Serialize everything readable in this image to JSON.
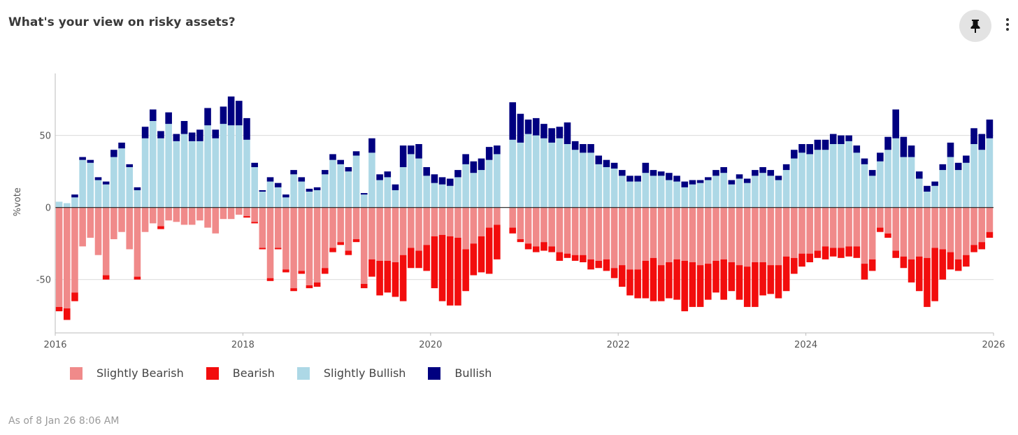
{
  "header": {
    "title": "What's your view on risky assets?",
    "pin_icon": "pin-icon",
    "more_icon": "more-vertical-icon"
  },
  "footer": {
    "as_of": "As of 8 Jan 26 8:06 AM"
  },
  "chart_data": {
    "type": "bar",
    "stacked": true,
    "ylabel": "%vote",
    "ylim": [
      -87,
      93
    ],
    "yticks": [
      -50,
      0,
      50
    ],
    "xlim": [
      "2016-01",
      "2026-01"
    ],
    "xticks": [
      "2016",
      "2018",
      "2020",
      "2022",
      "2024",
      "2026"
    ],
    "grid": "horizontal",
    "legend_position": "bottom-left",
    "legend": [
      "Slightly Bearish",
      "Bearish",
      "Slightly Bullish",
      "Bullish"
    ],
    "colors": {
      "Slightly Bearish": "#f08a8a",
      "Bearish": "#f20d0d",
      "Slightly Bullish": "#add8e6",
      "Bullish": "#000080"
    },
    "x": [
      "2016-01",
      "2016-02",
      "2016-03",
      "2016-04",
      "2016-05",
      "2016-06",
      "2016-07",
      "2016-08",
      "2016-09",
      "2016-10",
      "2016-11",
      "2016-12",
      "2017-01",
      "2017-02",
      "2017-03",
      "2017-04",
      "2017-05",
      "2017-06",
      "2017-07",
      "2017-08",
      "2017-09",
      "2017-10",
      "2017-11",
      "2017-12",
      "2018-01",
      "2018-02",
      "2018-03",
      "2018-04",
      "2018-05",
      "2018-06",
      "2018-07",
      "2018-08",
      "2018-09",
      "2018-10",
      "2018-11",
      "2018-12",
      "2019-01",
      "2019-02",
      "2019-03",
      "2019-04",
      "2019-05",
      "2019-06",
      "2019-07",
      "2019-08",
      "2019-09",
      "2019-10",
      "2019-11",
      "2019-12",
      "2020-01",
      "2020-02",
      "2020-03",
      "2020-04",
      "2020-05",
      "2020-06",
      "2020-07",
      "2020-08",
      "2020-09",
      "2020-10",
      "2020-11",
      "2020-12",
      "2021-01",
      "2021-02",
      "2021-03",
      "2021-04",
      "2021-05",
      "2021-06",
      "2021-07",
      "2021-08",
      "2021-09",
      "2021-10",
      "2021-11",
      "2021-12",
      "2022-01",
      "2022-02",
      "2022-03",
      "2022-04",
      "2022-05",
      "2022-06",
      "2022-07",
      "2022-08",
      "2022-09",
      "2022-10",
      "2022-11",
      "2022-12",
      "2023-01",
      "2023-02",
      "2023-03",
      "2023-04",
      "2023-05",
      "2023-06",
      "2023-07",
      "2023-08",
      "2023-09",
      "2023-10",
      "2023-11",
      "2023-12",
      "2024-01",
      "2024-02",
      "2024-03",
      "2024-04",
      "2024-05",
      "2024-06",
      "2024-07",
      "2024-08",
      "2024-09",
      "2024-10",
      "2024-11",
      "2024-12",
      "2025-01",
      "2025-02",
      "2025-03",
      "2025-04",
      "2025-05",
      "2025-06",
      "2025-07",
      "2025-08",
      "2025-09",
      "2025-10",
      "2025-11",
      "2025-12"
    ],
    "series": [
      {
        "name": "Slightly Bullish",
        "values": [
          4,
          3,
          7,
          33,
          31,
          19,
          16,
          35,
          41,
          28,
          12,
          48,
          60,
          48,
          58,
          46,
          51,
          46,
          46,
          57,
          48,
          58,
          57,
          57,
          47,
          28,
          11,
          18,
          14,
          7,
          23,
          18,
          11,
          12,
          23,
          33,
          30,
          25,
          36,
          9,
          38,
          19,
          21,
          12,
          28,
          37,
          34,
          22,
          17,
          16,
          15,
          21,
          30,
          24,
          26,
          33,
          37,
          0,
          47,
          45,
          51,
          50,
          48,
          45,
          48,
          44,
          40,
          38,
          38,
          30,
          28,
          27,
          22,
          18,
          18,
          24,
          22,
          22,
          19,
          18,
          14,
          16,
          17,
          19,
          22,
          24,
          16,
          20,
          17,
          22,
          24,
          22,
          19,
          26,
          34,
          38,
          37,
          40,
          40,
          44,
          44,
          46,
          38,
          30,
          22,
          32,
          40,
          48,
          35,
          35,
          20,
          11,
          15,
          26,
          35,
          26,
          31,
          44,
          40,
          48
        ]
      },
      {
        "name": "Bullish",
        "values": [
          0,
          0,
          2,
          2,
          2,
          2,
          2,
          5,
          4,
          2,
          2,
          8,
          8,
          5,
          8,
          5,
          9,
          6,
          8,
          12,
          6,
          12,
          20,
          17,
          15,
          3,
          1,
          3,
          3,
          2,
          3,
          3,
          2,
          2,
          3,
          4,
          3,
          3,
          3,
          1,
          10,
          4,
          4,
          4,
          15,
          6,
          10,
          6,
          6,
          5,
          5,
          5,
          7,
          8,
          8,
          9,
          6,
          0,
          26,
          20,
          10,
          12,
          10,
          10,
          8,
          15,
          6,
          6,
          6,
          6,
          5,
          4,
          4,
          4,
          4,
          7,
          4,
          3,
          5,
          4,
          4,
          3,
          2,
          2,
          4,
          4,
          3,
          3,
          3,
          4,
          4,
          4,
          3,
          4,
          6,
          6,
          7,
          7,
          7,
          7,
          6,
          4,
          5,
          4,
          4,
          6,
          9,
          20,
          14,
          8,
          5,
          4,
          3,
          4,
          10,
          5,
          5,
          11,
          11,
          13
        ]
      },
      {
        "name": "Slightly Bearish",
        "values": [
          -69,
          -70,
          -59,
          -27,
          -21,
          -33,
          -47,
          -22,
          -17,
          -29,
          -48,
          -17,
          -11,
          -13,
          -9,
          -10,
          -12,
          -12,
          -9,
          -14,
          -18,
          -8,
          -8,
          -5,
          -6,
          -10,
          -28,
          -49,
          -28,
          -43,
          -56,
          -44,
          -54,
          -52,
          -42,
          -28,
          -24,
          -30,
          -22,
          -53,
          -36,
          -37,
          -37,
          -38,
          -33,
          -28,
          -30,
          -26,
          -20,
          -19,
          -20,
          -21,
          -29,
          -25,
          -20,
          -14,
          -12,
          0,
          -14,
          -22,
          -25,
          -27,
          -24,
          -27,
          -31,
          -32,
          -33,
          -33,
          -36,
          -37,
          -36,
          -42,
          -40,
          -43,
          -43,
          -37,
          -35,
          -40,
          -38,
          -36,
          -37,
          -38,
          -40,
          -39,
          -37,
          -36,
          -38,
          -40,
          -41,
          -38,
          -38,
          -40,
          -40,
          -34,
          -35,
          -32,
          -32,
          -30,
          -27,
          -28,
          -28,
          -27,
          -27,
          -39,
          -36,
          -14,
          -18,
          -30,
          -34,
          -36,
          -34,
          -35,
          -28,
          -29,
          -31,
          -36,
          -33,
          -26,
          -24,
          -17
        ]
      },
      {
        "name": "Bearish",
        "values": [
          -3,
          -8,
          -6,
          0,
          0,
          0,
          -3,
          0,
          0,
          0,
          -2,
          0,
          0,
          -2,
          0,
          0,
          0,
          0,
          0,
          0,
          0,
          0,
          0,
          0,
          -1,
          -1,
          -1,
          -2,
          -1,
          -2,
          -2,
          -2,
          -2,
          -3,
          -4,
          -3,
          -2,
          -3,
          -2,
          -3,
          -12,
          -24,
          -22,
          -24,
          -32,
          -14,
          -12,
          -18,
          -36,
          -46,
          -48,
          -47,
          -29,
          -22,
          -25,
          -32,
          -24,
          0,
          -4,
          -2,
          -4,
          -4,
          -6,
          -4,
          -6,
          -3,
          -4,
          -5,
          -7,
          -5,
          -8,
          -7,
          -15,
          -18,
          -20,
          -26,
          -30,
          -25,
          -25,
          -28,
          -35,
          -31,
          -29,
          -25,
          -22,
          -28,
          -20,
          -24,
          -28,
          -31,
          -23,
          -20,
          -23,
          -24,
          -11,
          -9,
          -6,
          -5,
          -9,
          -6,
          -7,
          -7,
          -8,
          -11,
          -8,
          -3,
          -3,
          -5,
          -8,
          -16,
          -24,
          -34,
          -37,
          -21,
          -12,
          -8,
          -8,
          -5,
          -5,
          -4
        ]
      }
    ]
  }
}
